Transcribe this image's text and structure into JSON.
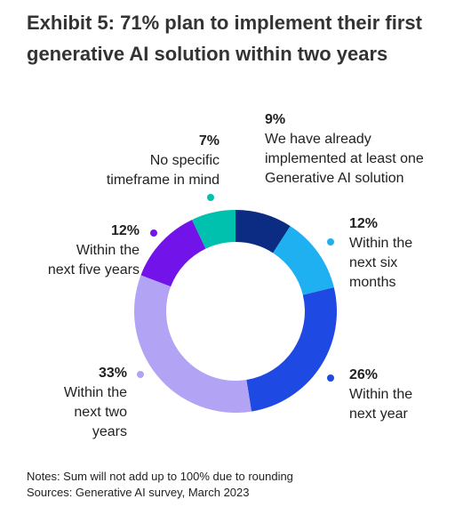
{
  "chart_data": {
    "type": "donut",
    "title": "Exhibit 5: 71% plan to implement their first generative AI solution within two years",
    "categories": [
      "We have already\nimplemented at least one\nGenerative AI solution",
      "Within the\nnext six\nmonths",
      "Within the\nnext year",
      "Within the\nnext two\nyears",
      "Within the\nnext five years",
      "No specific\ntimeframe in mind"
    ],
    "values": [
      9,
      12,
      26,
      33,
      12,
      7
    ],
    "value_labels": [
      "9%",
      "12%",
      "26%",
      "33%",
      "12%",
      "7%"
    ],
    "colors": [
      "#0c2c84",
      "#1eb0f0",
      "#1e49e2",
      "#b3a3f5",
      "#7213ea",
      "#00c0ae"
    ],
    "notes": [
      "Notes: Sum will not add up to 100% due to rounding",
      "Sources: Generative AI survey, March 2023"
    ]
  }
}
